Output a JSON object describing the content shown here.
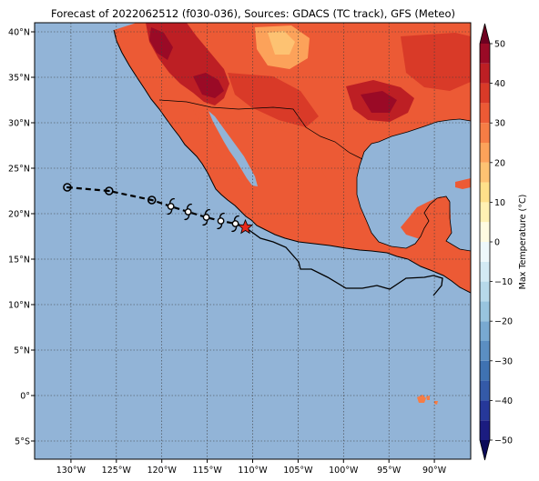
{
  "figure": {
    "title": "Forecast of 2022062512 (f030-036), Sources: GDACS (TC track), GFS (Meteo)"
  },
  "map": {
    "projection": "PlateCarree",
    "lon_range": [
      -134,
      -86
    ],
    "lat_range": [
      -7,
      41
    ],
    "ocean_color": "#92b4d7",
    "gridlines": "dotted",
    "lon_ticks": [
      "130°W",
      "125°W",
      "120°W",
      "115°W",
      "110°W",
      "105°W",
      "100°W",
      "95°W",
      "90°W"
    ],
    "lon_tick_values": [
      -130,
      -125,
      -120,
      -115,
      -110,
      -105,
      -100,
      -95,
      -90
    ],
    "lat_ticks": [
      "40°N",
      "35°N",
      "30°N",
      "25°N",
      "20°N",
      "15°N",
      "10°N",
      "5°N",
      "0°",
      "5°S"
    ],
    "lat_tick_values": [
      40,
      35,
      30,
      25,
      20,
      15,
      10,
      5,
      0,
      -5
    ]
  },
  "track": {
    "past_positions": [
      {
        "lon": -130.4,
        "lat": 22.9
      },
      {
        "lon": -125.8,
        "lat": 22.5
      },
      {
        "lon": -121.1,
        "lat": 21.5
      }
    ],
    "forecast_positions": [
      {
        "lon": -119.0,
        "lat": 20.8
      },
      {
        "lon": -117.1,
        "lat": 20.2
      },
      {
        "lon": -115.1,
        "lat": 19.6
      },
      {
        "lon": -113.5,
        "lat": 19.2
      },
      {
        "lon": -111.9,
        "lat": 18.9
      }
    ],
    "current_position": {
      "lon": -110.8,
      "lat": 18.5
    },
    "track_line_color": "#000000",
    "star_color": "#e8291c"
  },
  "colorbar": {
    "label": "Max Temperature (°C)",
    "ticks": [
      "50",
      "40",
      "30",
      "20",
      "10",
      "0",
      "−10",
      "−20",
      "−30",
      "−40",
      "−50"
    ],
    "tick_values": [
      50,
      40,
      30,
      20,
      10,
      0,
      -10,
      -20,
      -30,
      -40,
      -50
    ],
    "bands": [
      {
        "from": -50,
        "to": -45,
        "color": "#1b1c80"
      },
      {
        "from": -45,
        "to": -40,
        "color": "#26389a"
      },
      {
        "from": -40,
        "to": -35,
        "color": "#345aa8"
      },
      {
        "from": -35,
        "to": -30,
        "color": "#3f72b2"
      },
      {
        "from": -30,
        "to": -25,
        "color": "#5b8ec2"
      },
      {
        "from": -25,
        "to": -20,
        "color": "#78a9d1"
      },
      {
        "from": -20,
        "to": -15,
        "color": "#98c4de"
      },
      {
        "from": -15,
        "to": -10,
        "color": "#b7d9ea"
      },
      {
        "from": -10,
        "to": -5,
        "color": "#d3eaf4"
      },
      {
        "from": -5,
        "to": 0,
        "color": "#eef8fb"
      },
      {
        "from": 0,
        "to": 5,
        "color": "#fffbe1"
      },
      {
        "from": 5,
        "to": 10,
        "color": "#fff1b3"
      },
      {
        "from": 10,
        "to": 15,
        "color": "#fee08a"
      },
      {
        "from": 15,
        "to": 20,
        "color": "#fdc272"
      },
      {
        "from": 20,
        "to": 25,
        "color": "#fca25a"
      },
      {
        "from": 25,
        "to": 30,
        "color": "#f67d45"
      },
      {
        "from": 30,
        "to": 35,
        "color": "#ec5a35"
      },
      {
        "from": 35,
        "to": 40,
        "color": "#d93a28"
      },
      {
        "from": 40,
        "to": 45,
        "color": "#bd1f24"
      },
      {
        "from": 45,
        "to": 50,
        "color": "#9a0a26"
      }
    ],
    "under_color": "#0a0a59",
    "over_color": "#6e0020"
  },
  "land_colors": {
    "t20_25": "#fca25a",
    "t25_30": "#f67d45",
    "t30_35": "#ec5a35",
    "t35_40": "#d93a28",
    "t40_45": "#bd1f24",
    "t45_50": "#9a0a26",
    "t15_20": "#fdc272"
  }
}
